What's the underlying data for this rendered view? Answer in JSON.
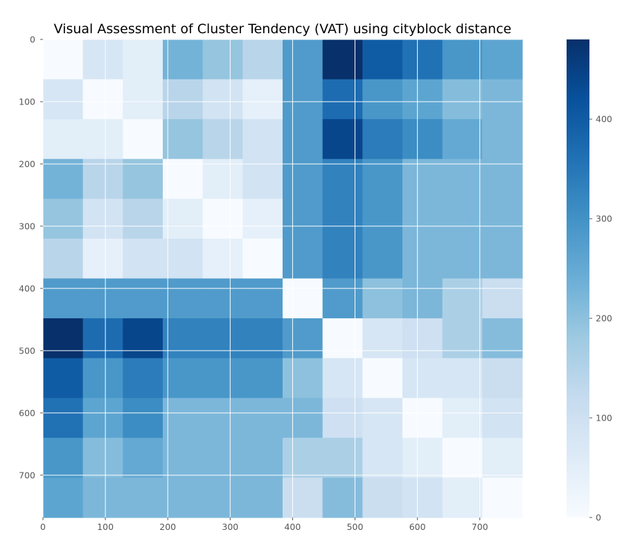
{
  "chart_data": {
    "type": "heatmap",
    "title": "Visual Assessment of Cluster Tendency (VAT) using cityblock distance",
    "xlabel": "",
    "ylabel": "",
    "xlim": [
      0,
      768
    ],
    "ylim": [
      768,
      0
    ],
    "x_ticks": [
      0,
      100,
      200,
      300,
      400,
      500,
      600,
      700
    ],
    "y_ticks": [
      0,
      100,
      200,
      300,
      400,
      500,
      600,
      700
    ],
    "grid": true,
    "colormap": "Blues",
    "block_size": 64,
    "matrix": [
      [
        0,
        80,
        50,
        230,
        190,
        140,
        280,
        480,
        400,
        360,
        290,
        260
      ],
      [
        80,
        0,
        50,
        140,
        90,
        40,
        280,
        370,
        290,
        260,
        210,
        220
      ],
      [
        50,
        50,
        0,
        190,
        140,
        90,
        280,
        440,
        340,
        310,
        250,
        220
      ],
      [
        230,
        140,
        190,
        0,
        50,
        90,
        280,
        330,
        290,
        220,
        220,
        220
      ],
      [
        190,
        90,
        140,
        50,
        0,
        40,
        280,
        330,
        290,
        220,
        220,
        220
      ],
      [
        140,
        40,
        90,
        90,
        40,
        0,
        280,
        330,
        290,
        220,
        220,
        220
      ],
      [
        280,
        280,
        280,
        280,
        280,
        280,
        0,
        280,
        200,
        220,
        160,
        110
      ],
      [
        480,
        370,
        440,
        330,
        330,
        330,
        280,
        0,
        80,
        100,
        160,
        210
      ],
      [
        400,
        290,
        340,
        290,
        290,
        290,
        200,
        80,
        0,
        80,
        80,
        110
      ],
      [
        360,
        260,
        310,
        220,
        220,
        220,
        220,
        100,
        80,
        0,
        50,
        90
      ],
      [
        290,
        210,
        250,
        220,
        220,
        220,
        160,
        160,
        80,
        50,
        0,
        50
      ],
      [
        260,
        220,
        220,
        220,
        220,
        220,
        110,
        210,
        110,
        90,
        50,
        0
      ]
    ],
    "colorbar": {
      "min": 0,
      "max": 480,
      "ticks": [
        0,
        100,
        200,
        300,
        400
      ]
    }
  }
}
